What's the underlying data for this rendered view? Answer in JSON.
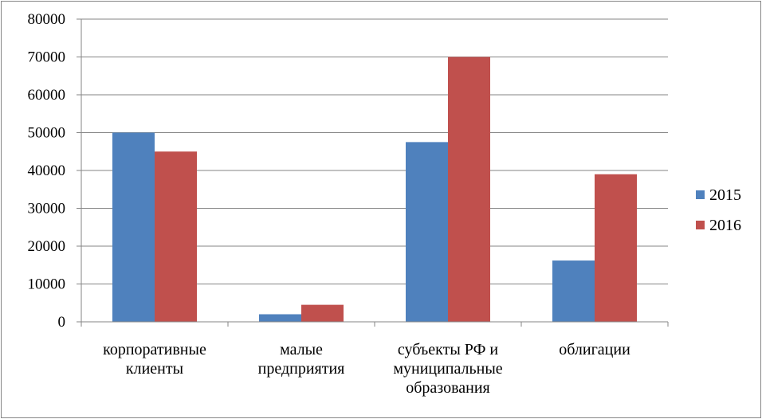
{
  "chart_data": {
    "type": "bar",
    "title": "",
    "xlabel": "",
    "ylabel": "",
    "ylim": [
      0,
      80000
    ],
    "y_ticks": [
      0,
      10000,
      20000,
      30000,
      40000,
      50000,
      60000,
      70000,
      80000
    ],
    "grid": true,
    "legend_position": "right",
    "categories": [
      [
        "корпоративные",
        "клиенты"
      ],
      [
        "малые",
        "предприятия"
      ],
      [
        "субъекты РФ и",
        "муниципальные",
        "образования"
      ],
      [
        "облигации"
      ]
    ],
    "series": [
      {
        "name": "2015",
        "color": "#4f81bd",
        "values": [
          50000,
          2000,
          47500,
          16200
        ]
      },
      {
        "name": "2016",
        "color": "#c0504d",
        "values": [
          45000,
          4500,
          70000,
          39000
        ]
      }
    ]
  }
}
